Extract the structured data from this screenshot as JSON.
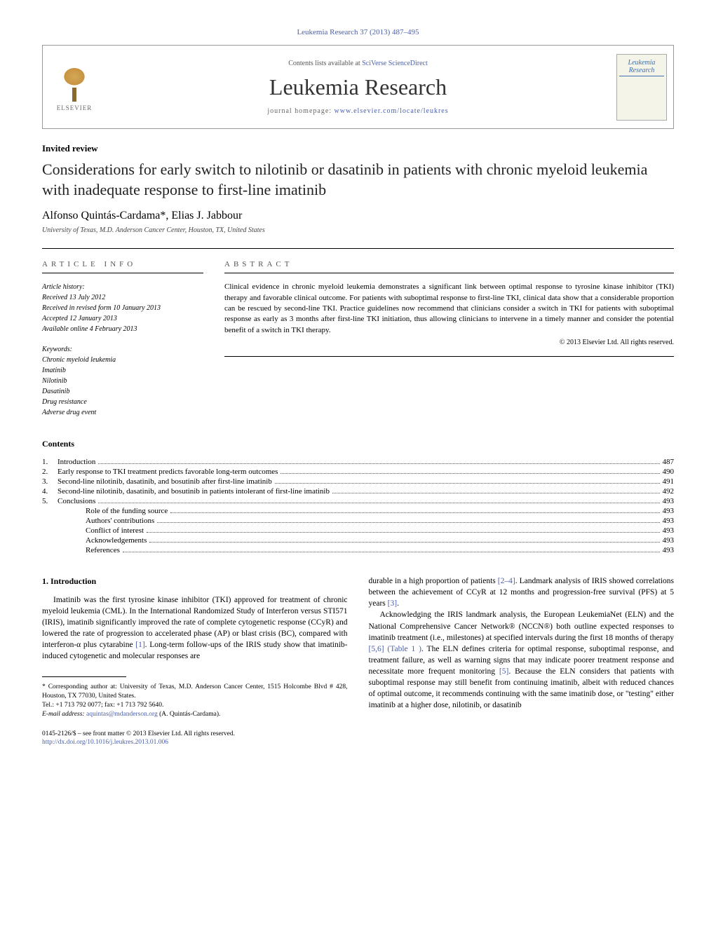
{
  "citation": "Leukemia Research 37 (2013) 487–495",
  "header": {
    "contents_available_prefix": "Contents lists available at ",
    "contents_available_link": "SciVerse ScienceDirect",
    "journal_name": "Leukemia Research",
    "homepage_prefix": "journal homepage: ",
    "homepage_url": "www.elsevier.com/locate/leukres",
    "publisher_name": "ELSEVIER",
    "cover_title": "Leukemia Research"
  },
  "article": {
    "type": "Invited review",
    "title": "Considerations for early switch to nilotinib or dasatinib in patients with chronic myeloid leukemia with inadequate response to first-line imatinib",
    "authors": "Alfonso Quintás-Cardama*, Elias J. Jabbour",
    "affiliation": "University of Texas, M.D. Anderson Cancer Center, Houston, TX, United States"
  },
  "info": {
    "heading": "article info",
    "history_label": "Article history:",
    "received": "Received 13 July 2012",
    "revised": "Received in revised form 10 January 2013",
    "accepted": "Accepted 12 January 2013",
    "online": "Available online 4 February 2013",
    "keywords_label": "Keywords:",
    "keywords": [
      "Chronic myeloid leukemia",
      "Imatinib",
      "Nilotinib",
      "Dasatinib",
      "Drug resistance",
      "Adverse drug event"
    ]
  },
  "abstract": {
    "heading": "abstract",
    "text": "Clinical evidence in chronic myeloid leukemia demonstrates a significant link between optimal response to tyrosine kinase inhibitor (TKI) therapy and favorable clinical outcome. For patients with suboptimal response to first-line TKI, clinical data show that a considerable proportion can be rescued by second-line TKI. Practice guidelines now recommend that clinicians consider a switch in TKI for patients with suboptimal response as early as 3 months after first-line TKI initiation, thus allowing clinicians to intervene in a timely manner and consider the potential benefit of a switch in TKI therapy.",
    "copyright": "© 2013 Elsevier Ltd. All rights reserved."
  },
  "contents": {
    "title": "Contents",
    "items": [
      {
        "num": "1.",
        "label": "Introduction",
        "page": "487",
        "indent": 0
      },
      {
        "num": "2.",
        "label": "Early response to TKI treatment predicts favorable long-term outcomes",
        "page": "490",
        "indent": 0
      },
      {
        "num": "3.",
        "label": "Second-line nilotinib, dasatinib, and bosutinib after first-line imatinib",
        "page": "491",
        "indent": 0
      },
      {
        "num": "4.",
        "label": "Second-line nilotinib, dasatinib, and bosutinib in patients intolerant of first-line imatinib",
        "page": "492",
        "indent": 0
      },
      {
        "num": "5.",
        "label": "Conclusions",
        "page": "493",
        "indent": 0
      },
      {
        "num": "",
        "label": "Role of the funding source",
        "page": "493",
        "indent": 1
      },
      {
        "num": "",
        "label": "Authors' contributions",
        "page": "493",
        "indent": 1
      },
      {
        "num": "",
        "label": "Conflict of interest",
        "page": "493",
        "indent": 1
      },
      {
        "num": "",
        "label": "Acknowledgements",
        "page": "493",
        "indent": 1
      },
      {
        "num": "",
        "label": "References",
        "page": "493",
        "indent": 1
      }
    ]
  },
  "body": {
    "section1_heading": "1. Introduction",
    "col1_p1a": "Imatinib was the first tyrosine kinase inhibitor (TKI) approved for treatment of chronic myeloid leukemia (CML). In the International Randomized Study of Interferon versus STI571 (IRIS), imatinib significantly improved the rate of complete cytogenetic response (CCyR) and lowered the rate of progression to accelerated phase (AP) or blast crisis (BC), compared with interferon-α plus cytarabine ",
    "ref1": "[1]",
    "col1_p1b": ". Long-term follow-ups of the IRIS study show that imatinib-induced cytogenetic and molecular responses are",
    "col2_p1a": "durable in a high proportion of patients ",
    "ref24": "[2–4]",
    "col2_p1b": ". Landmark analysis of IRIS showed correlations between the achievement of CCyR at 12 months and progression-free survival (PFS) at 5 years ",
    "ref3": "[3]",
    "col2_p1c": ".",
    "col2_p2a": "Acknowledging the IRIS landmark analysis, the European LeukemiaNet (ELN) and the National Comprehensive Cancer Network® (NCCN®) both outline expected responses to imatinib treatment (i.e., milestones) at specified intervals during the first 18 months of therapy ",
    "ref56": "[5,6]",
    "table1": " (Table 1 )",
    "col2_p2b": ". The ELN defines criteria for optimal response, suboptimal response, and treatment failure, as well as warning signs that may indicate poorer treatment response and necessitate more frequent monitoring ",
    "ref5": "[5]",
    "col2_p2c": ". Because the ELN considers that patients with suboptimal response may still benefit from continuing imatinib, albeit with reduced chances of optimal outcome, it recommends continuing with the same imatinib dose, or \"testing\" either imatinib at a higher dose, nilotinib, or dasatinib"
  },
  "footnote": {
    "corresponding": "* Corresponding author at: University of Texas, M.D. Anderson Cancer Center, 1515 Holcombe Blvd # 428, Houston, TX 77030, United States.",
    "tel": "Tel.: +1 713 792 0077; fax: +1 713 792 5640.",
    "email_label": "E-mail address: ",
    "email": "aquintas@mdanderson.org",
    "email_suffix": " (A. Quintás-Cardama)."
  },
  "bottom": {
    "issn": "0145-2126/$ – see front matter © 2013 Elsevier Ltd. All rights reserved.",
    "doi": "http://dx.doi.org/10.1016/j.leukres.2013.01.006"
  },
  "colors": {
    "link": "#4a5fa8",
    "text": "#000000",
    "background": "#ffffff",
    "border": "#999999"
  }
}
